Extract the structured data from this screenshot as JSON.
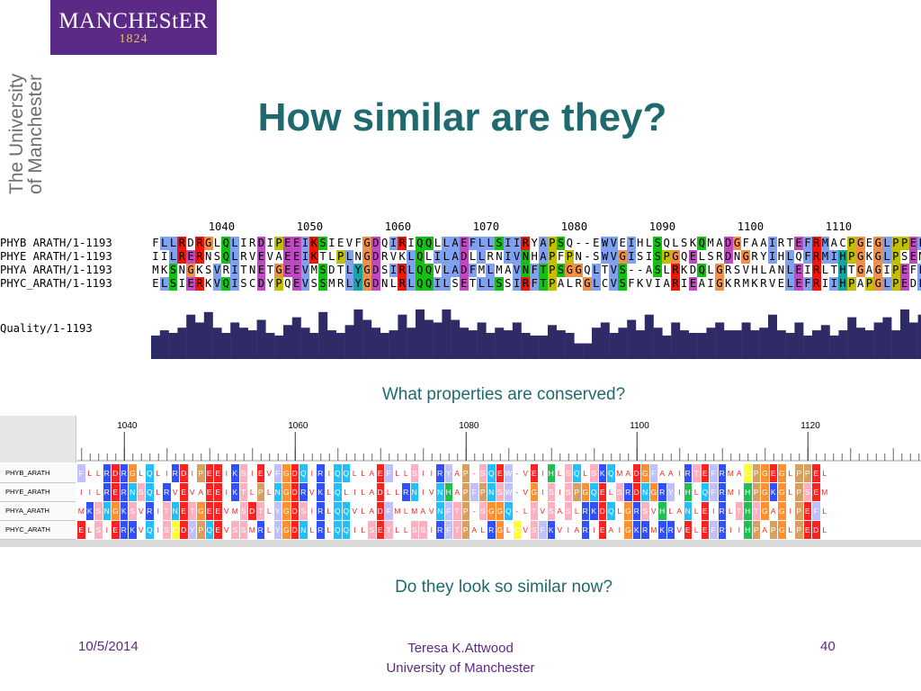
{
  "logo": {
    "name": "MANCHEStER",
    "year": "1824"
  },
  "vertical": {
    "line1": "The University",
    "line2": "of Manchester"
  },
  "title": "How similar are they?",
  "jalview": {
    "ticks": [
      "1040",
      "1050",
      "1060",
      "1070",
      "1080",
      "1090",
      "1100",
      "1110"
    ],
    "rows": [
      {
        "name": "PHYB ARATH/1-1193",
        "seq": "FLLRDRGLQLIRDIPEEIKSIEVFGDQIRIQQLLAEFLLSIIRYAPSQ--EWVEIHLSQLSKQMADGFAAIRTEFRMACPGEGLPPEL"
      },
      {
        "name": "PHYE ARATH/1-1193",
        "seq": "IILRERNSQLRVEVAEEIKTLPLNGDRVKLQLILADLLRNIVNHAPFPN-SWVGISISPGQELSRDNGRYIHLQFRMIHPGKGLPSEM"
      },
      {
        "name": "PHYA ARATH/1-1193",
        "seq": "MKSNGKSVRITNETGEEVMSDTLYGDSIRLQQVLADFMLMAVNFTPSGGQLTVS--ASLRKDQLGRSVHLANLEIRLTHTGAGIPEFL"
      },
      {
        "name": "PHYC_ARATH/1-1193",
        "seq": "ELSIERKVQISCDYPQEVSSMRLYGDNLRLQQILSETLLSSIRFTPALRGLCVSFKVIARIEAIGKRMKRVELEFRIIHPAPGLPEDL"
      }
    ],
    "quality_label": "Quality/1-1193",
    "quality": [
      0.45,
      0.55,
      0.5,
      0.6,
      0.85,
      0.7,
      0.9,
      0.6,
      0.5,
      0.7,
      0.6,
      0.55,
      0.75,
      0.5,
      0.45,
      0.65,
      0.8,
      0.6,
      0.5,
      0.9,
      0.55,
      0.5,
      0.65,
      0.95,
      0.75,
      0.6,
      0.5,
      0.55,
      0.85,
      0.6,
      0.95,
      0.75,
      0.7,
      0.95,
      0.75,
      0.6,
      0.55,
      0.7,
      0.5,
      0.6,
      0.55,
      0.7,
      0.5,
      0.45,
      0.45,
      0.65,
      0.55,
      0.5,
      0.3,
      0.3,
      0.6,
      0.7,
      0.5,
      0.6,
      0.75,
      0.55,
      0.85,
      0.6,
      0.45,
      0.7,
      0.55,
      0.5,
      0.5,
      0.6,
      0.7,
      0.55,
      0.55,
      0.7,
      0.55,
      0.6,
      0.85,
      0.55,
      0.5,
      0.7,
      0.45,
      0.55,
      0.65,
      0.45,
      0.55,
      0.8,
      0.6,
      0.55,
      0.7,
      0.8,
      0.55,
      0.95,
      0.7,
      0.85
    ]
  },
  "captions": {
    "q1": "What properties are conserved?",
    "q2": "Do they look so similar now?"
  },
  "clustal": {
    "ruler": [
      "1040",
      "1060",
      "1080",
      "1100",
      "1120"
    ],
    "names": [
      "PHYB_ARATH",
      "PHYE_ARATH",
      "PHYA_ARATH",
      "PHYC_ARATH"
    ],
    "rows": [
      "FLLRDRGLQLIRDIPEEIKSIEVFGDQIRIQQLLAEFLLSIIRYAP-SQEW-VEIHLSQLSKQMADGFAAIRTEFRMACPGEGLPPEL",
      "IILRERNSQLRVEVAEEIKTLPLNGDRVKLQLILADLLRNIVNHAPFPNSW-VGISISPGQELSRDNGRYIHLQFRMIHPGKGLPSEM",
      "MKSNGKSVRITNETGEEVMSDTLYGDSIRLQQVLADFMLMAVNFTP-SGGQ-LTVSASLRKDQLGRSVHLANLEIRLTHTGAGIPEFL",
      "ELSIERKVQISCDYPQEVSSMRLYGDNLRLQQILSETLLSSIRFTPALRGLCVSFKVIARIEAIGKRMKRVELEFRIIHPAPGLPEDL"
    ]
  },
  "footer": {
    "date": "10/5/2014",
    "author": "Teresa K.Attwood",
    "affiliation": "University of Manchester",
    "page": "40"
  },
  "colors": {
    "title": "#1e6a6e",
    "logo_bg": "#5b2a86",
    "footer": "#5b2a86",
    "quality_bar": "#2f2b66"
  }
}
